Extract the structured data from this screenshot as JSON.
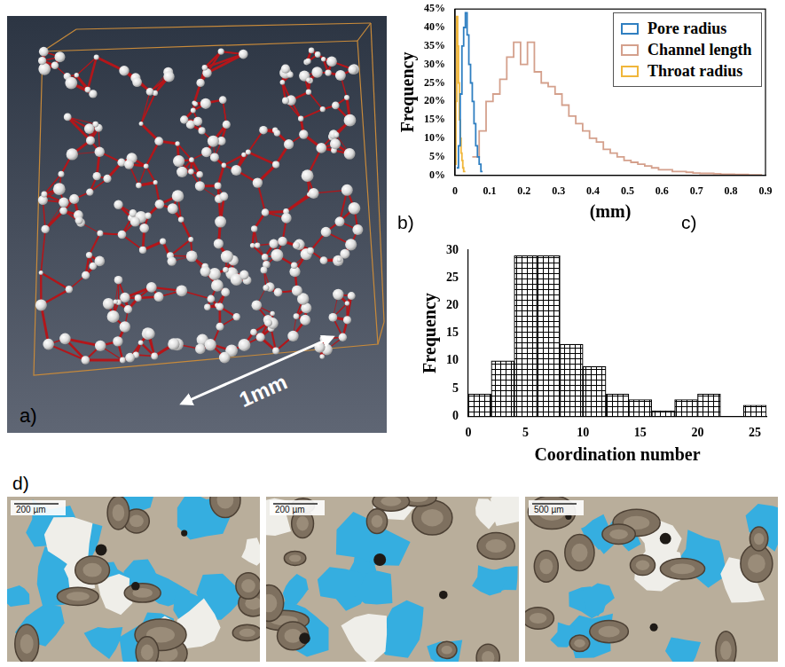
{
  "panel_a": {
    "label": "a)",
    "scale_text": "1mm"
  },
  "chart_data": [
    {
      "panel_label": "b)",
      "type": "histogram",
      "x_label": "(mm)",
      "y_label": "Frequency",
      "xlim": [
        0,
        0.9
      ],
      "xticks": [
        0,
        0.1,
        0.2,
        0.3,
        0.4,
        0.5,
        0.6,
        0.7,
        0.8,
        0.9
      ],
      "ylim": [
        0,
        45
      ],
      "yticks": [
        {
          "value": 0,
          "label": "0%"
        },
        {
          "value": 5,
          "label": "5%"
        },
        {
          "value": 10,
          "label": "10%"
        },
        {
          "value": 15,
          "label": "15%"
        },
        {
          "value": 20,
          "label": "20%"
        },
        {
          "value": 25,
          "label": "25%"
        },
        {
          "value": 30,
          "label": "30%"
        },
        {
          "value": 35,
          "label": "35%"
        },
        {
          "value": 40,
          "label": "40%"
        },
        {
          "value": 45,
          "label": "45%"
        }
      ],
      "grid": false,
      "legend": "top-right",
      "series": [
        {
          "name": "Pore radius",
          "color": "#2f7fc1",
          "bins": [
            0.005,
            0.01,
            0.015,
            0.02,
            0.025,
            0.03,
            0.035,
            0.04,
            0.045,
            0.05,
            0.055,
            0.06,
            0.065,
            0.07,
            0.075,
            0.08
          ],
          "values": [
            2,
            8,
            22,
            35,
            40,
            44,
            38,
            30,
            25,
            20,
            14,
            8,
            5,
            3,
            1
          ]
        },
        {
          "name": "Channel length",
          "color": "#d4a08c",
          "bins": [
            0.05,
            0.07,
            0.09,
            0.11,
            0.13,
            0.15,
            0.17,
            0.19,
            0.21,
            0.23,
            0.25,
            0.27,
            0.29,
            0.31,
            0.33,
            0.35,
            0.37,
            0.39,
            0.41,
            0.43,
            0.45,
            0.47,
            0.49,
            0.51,
            0.53,
            0.55,
            0.57,
            0.59,
            0.61,
            0.63,
            0.65,
            0.67,
            0.69,
            0.71,
            0.73,
            0.75,
            0.77,
            0.79,
            0.81,
            0.83,
            0.85,
            0.87,
            0.89
          ],
          "values": [
            5,
            12,
            20,
            22,
            26,
            32,
            36,
            30,
            36,
            28,
            25,
            24,
            22,
            19,
            16,
            14,
            12,
            10,
            9,
            7,
            6,
            5,
            4,
            3.5,
            3,
            2.5,
            2,
            1.5,
            1.5,
            1,
            1,
            0.8,
            0.6,
            0.5,
            0.5,
            0.4,
            0.3,
            0.3,
            0.2,
            0.2,
            0.1,
            0.1
          ]
        },
        {
          "name": "Throat radius",
          "color": "#f0b63a",
          "bins": [
            0,
            0.0025,
            0.005,
            0.0075,
            0.01,
            0.0125,
            0.015,
            0.0175,
            0.02,
            0.0225,
            0.025,
            0.0275,
            0.03
          ],
          "values": [
            3,
            20,
            43,
            35,
            25,
            15,
            10,
            6,
            4,
            2,
            1,
            1
          ]
        }
      ]
    },
    {
      "panel_label": "c)",
      "type": "histogram",
      "x_label": "Coordination number",
      "y_label": "Frequency",
      "xlim": [
        0,
        26
      ],
      "xticks": [
        0,
        5,
        10,
        15,
        20,
        25
      ],
      "ylim": [
        0,
        30
      ],
      "yticks": [
        0,
        5,
        10,
        15,
        20,
        25,
        30
      ],
      "grid": false,
      "color": "#000000",
      "bins": [
        0,
        2,
        4,
        6,
        8,
        10,
        12,
        14,
        16,
        18,
        20,
        22,
        24,
        26
      ],
      "values": [
        4,
        10,
        29,
        29,
        13,
        9,
        4,
        3,
        1,
        3,
        4,
        0,
        2
      ]
    }
  ],
  "panel_d": {
    "label": "d)",
    "scale_bars": [
      "200 µm",
      "200 µm",
      "500 µm"
    ]
  }
}
